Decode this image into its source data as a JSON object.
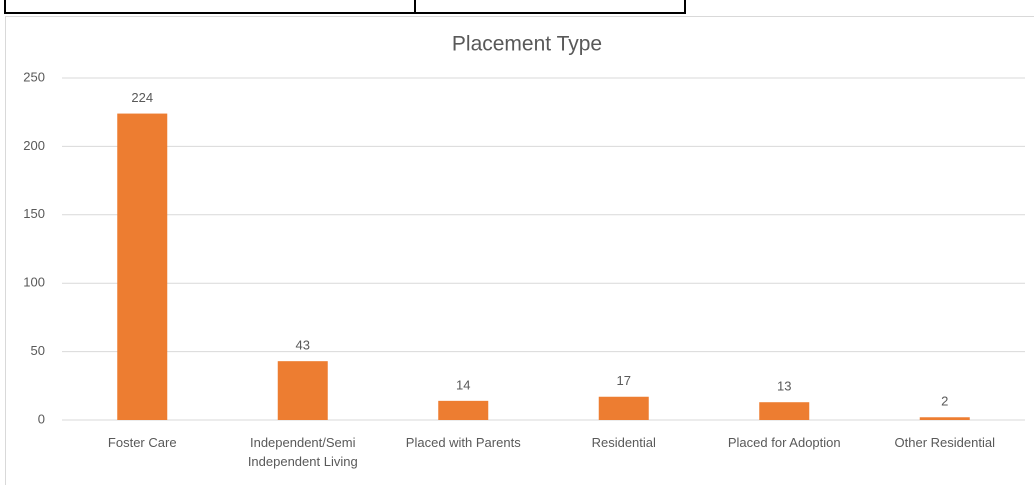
{
  "chart_data": {
    "type": "bar",
    "title": "Placement Type",
    "categories": [
      "Foster Care",
      "Independent/Semi Independent Living",
      "Placed with Parents",
      "Residential",
      "Placed for Adoption",
      "Other Residential"
    ],
    "values": [
      224,
      43,
      14,
      17,
      13,
      2
    ],
    "color": "#ed7d31",
    "ylim": [
      0,
      250
    ],
    "yticks": [
      0,
      50,
      100,
      150,
      200,
      250
    ],
    "grid": true
  }
}
